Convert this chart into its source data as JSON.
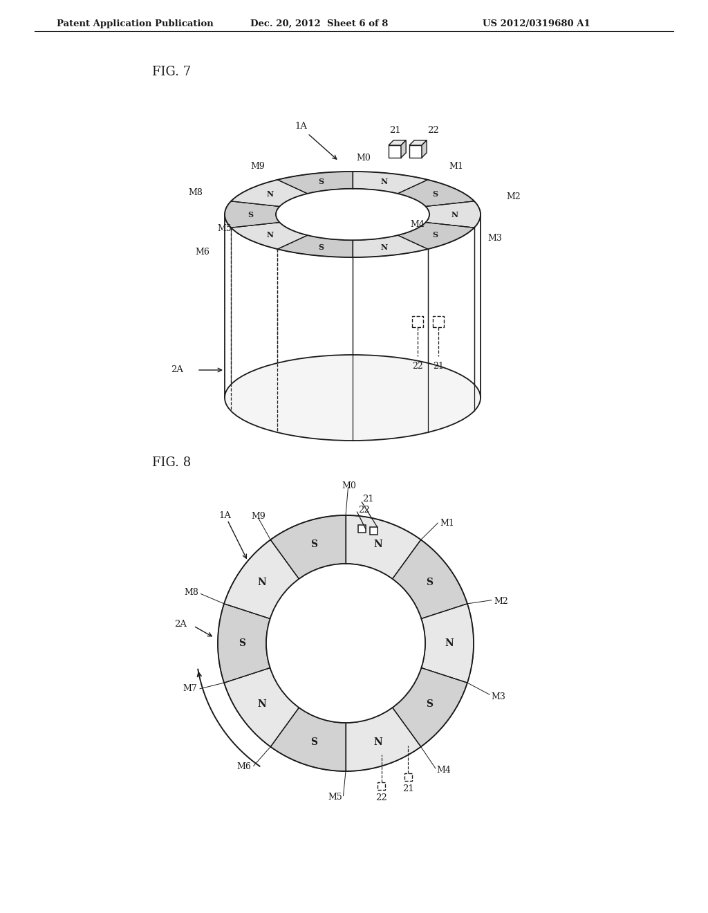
{
  "header_left": "Patent Application Publication",
  "header_mid": "Dec. 20, 2012  Sheet 6 of 8",
  "header_right": "US 2012/0319680 A1",
  "fig7_label": "FIG. 7",
  "fig8_label": "FIG. 8",
  "bg_color": "#ffffff",
  "line_color": "#1a1a1a",
  "segments": [
    {
      "label": "M0",
      "pole": "N"
    },
    {
      "label": "M1",
      "pole": "S"
    },
    {
      "label": "M2",
      "pole": "N"
    },
    {
      "label": "M3",
      "pole": "S"
    },
    {
      "label": "M4",
      "pole": "N"
    },
    {
      "label": "M5",
      "pole": "S"
    },
    {
      "label": "M6",
      "pole": "N"
    },
    {
      "label": "M7",
      "pole": "S"
    },
    {
      "label": "M8",
      "pole": "N"
    },
    {
      "label": "M9",
      "pole": "S"
    }
  ]
}
